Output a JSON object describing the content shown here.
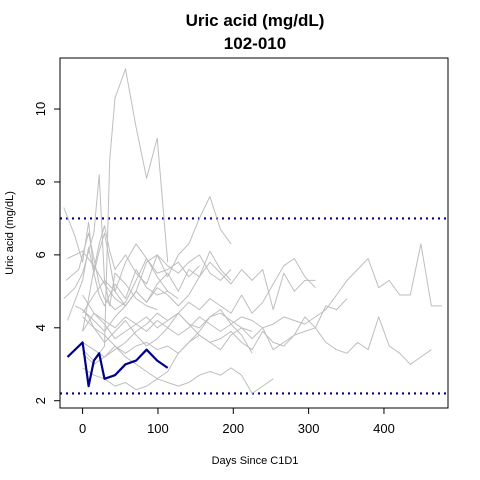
{
  "chart_data": {
    "type": "line",
    "title": "Uric acid (mg/dL)",
    "subtitle": "102-010",
    "xlabel": "Days Since C1D1",
    "ylabel": "Uric acid (mg/dL)",
    "xlim": [
      -30,
      485
    ],
    "ylim": [
      1.8,
      11.4
    ],
    "x_ticks": [
      0,
      100,
      200,
      300,
      400
    ],
    "y_ticks": [
      2,
      4,
      6,
      8,
      10
    ],
    "reference_lines": [
      {
        "y": 7.0,
        "style": "dotted",
        "color": "#00008B"
      },
      {
        "y": 2.2,
        "style": "dotted",
        "color": "#00008B"
      }
    ],
    "colors": {
      "highlight": "#00008B",
      "background_series": "#BEBEBE",
      "frame": "#000000"
    },
    "highlight_series": {
      "name": "102-010",
      "x": [
        -20,
        0,
        8,
        15,
        22,
        29,
        43,
        57,
        71,
        85,
        99,
        113
      ],
      "y": [
        3.2,
        3.6,
        2.4,
        3.1,
        3.3,
        2.6,
        2.7,
        3.0,
        3.1,
        3.4,
        3.1,
        2.9
      ]
    },
    "background_series": [
      {
        "x": [
          -25,
          -10,
          0,
          8,
          15,
          22,
          29,
          43,
          57,
          71,
          85,
          99,
          113
        ],
        "y": [
          7.3,
          6.5,
          5.8,
          6.9,
          5.5,
          4.9,
          4.6,
          5.2,
          4.8,
          5.6,
          5.1,
          4.9,
          5.0
        ]
      },
      {
        "x": [
          -20,
          0,
          15,
          29,
          43,
          57,
          71,
          85,
          99,
          113,
          127,
          141,
          155,
          169,
          183,
          197
        ],
        "y": [
          5.9,
          6.1,
          5.7,
          5.2,
          4.8,
          4.6,
          5.0,
          4.7,
          5.1,
          4.9,
          4.6,
          4.9,
          5.4,
          6.1,
          5.6,
          5.3
        ]
      },
      {
        "x": [
          -22,
          -5,
          0,
          8,
          15,
          22,
          29,
          43,
          57,
          71,
          85,
          99,
          113,
          127
        ],
        "y": [
          5.3,
          5.6,
          6.0,
          6.6,
          5.9,
          5.2,
          4.8,
          4.5,
          4.7,
          5.3,
          5.9,
          5.4,
          5.0,
          4.8
        ]
      },
      {
        "x": [
          -25,
          -10,
          0,
          8,
          15,
          22,
          29,
          36,
          43,
          57,
          71,
          85,
          99
        ],
        "y": [
          4.8,
          5.1,
          5.5,
          6.1,
          6.6,
          8.2,
          5.3,
          4.6,
          5.5,
          5.2,
          4.8,
          4.6,
          4.5
        ]
      },
      {
        "x": [
          0,
          15,
          29,
          43,
          57,
          71,
          85,
          99,
          113,
          127,
          141,
          155,
          169,
          183,
          197,
          211,
          225,
          239,
          253,
          267,
          281,
          295,
          309,
          323,
          337,
          351,
          365,
          379,
          393,
          407,
          421,
          435,
          449,
          463,
          477
        ],
        "y": [
          3.9,
          4.4,
          4.2,
          4.0,
          4.3,
          4.1,
          3.9,
          4.2,
          4.0,
          3.8,
          4.0,
          4.3,
          4.1,
          3.9,
          4.1,
          4.3,
          4.2,
          4.0,
          4.1,
          4.3,
          4.2,
          4.1,
          4.3,
          4.5,
          4.9,
          5.3,
          5.6,
          5.9,
          5.1,
          5.3,
          4.9,
          4.9,
          6.3,
          4.6,
          4.6
        ]
      },
      {
        "x": [
          0,
          15,
          29,
          43,
          57,
          71,
          85,
          99,
          113,
          127,
          141,
          155,
          169,
          183,
          197,
          211,
          225,
          239,
          253,
          267,
          281,
          295,
          309,
          323,
          337,
          351,
          365,
          379,
          393,
          407,
          421,
          435,
          449,
          463
        ],
        "y": [
          3.6,
          3.4,
          3.2,
          3.5,
          3.3,
          3.5,
          3.6,
          3.4,
          3.5,
          3.3,
          3.6,
          3.8,
          3.6,
          3.7,
          3.9,
          3.6,
          3.4,
          3.9,
          3.6,
          3.5,
          3.8,
          3.9,
          4.0,
          3.6,
          3.4,
          3.3,
          3.6,
          3.4,
          4.3,
          3.5,
          3.3,
          3.0,
          3.2,
          3.4
        ]
      },
      {
        "x": [
          0,
          15,
          29,
          43,
          57,
          71,
          85,
          99,
          113,
          127,
          141,
          155,
          169,
          183,
          197,
          211,
          225,
          239,
          253,
          267,
          281,
          295,
          309
        ],
        "y": [
          4.5,
          4.2,
          3.9,
          4.3,
          4.6,
          5.0,
          4.7,
          5.2,
          5.5,
          5.0,
          5.6,
          5.4,
          5.8,
          5.5,
          5.2,
          5.6,
          5.3,
          5.6,
          4.5,
          5.5,
          5.0,
          5.3,
          5.3
        ]
      },
      {
        "x": [
          0,
          15,
          29,
          43,
          57,
          71,
          85,
          99,
          113,
          127,
          141,
          155,
          169,
          183,
          197,
          211,
          225,
          239,
          253,
          267,
          281,
          295,
          309
        ],
        "y": [
          3.3,
          3.0,
          3.2,
          3.4,
          3.6,
          3.9,
          4.1,
          4.4,
          4.2,
          4.4,
          4.7,
          4.5,
          4.8,
          4.6,
          4.4,
          4.9,
          4.4,
          4.7,
          5.2,
          5.7,
          5.9,
          5.4,
          5.1
        ]
      },
      {
        "x": [
          0,
          15,
          29,
          43,
          57,
          71,
          85,
          99,
          113,
          127,
          141,
          155,
          169,
          183,
          197,
          211,
          225,
          239,
          253,
          267,
          281,
          295,
          309,
          323,
          337,
          351
        ],
        "y": [
          4.9,
          4.4,
          4.1,
          3.7,
          3.9,
          4.1,
          4.3,
          4.0,
          4.2,
          4.4,
          4.1,
          4.0,
          4.3,
          4.4,
          4.2,
          4.0,
          3.7,
          4.0,
          3.4,
          3.6,
          3.8,
          4.3,
          4.0,
          4.6,
          4.5,
          4.8
        ]
      },
      {
        "x": [
          0,
          8,
          15,
          22,
          29,
          36,
          43,
          57,
          71,
          85,
          99,
          113,
          127,
          141,
          155,
          169,
          183,
          197
        ],
        "y": [
          3.9,
          4.8,
          5.6,
          6.3,
          6.8,
          6.1,
          5.6,
          6.0,
          5.5,
          5.2,
          6.0,
          5.7,
          5.5,
          5.8,
          6.0,
          5.5,
          5.3,
          5.6
        ]
      },
      {
        "x": [
          -10,
          0,
          8,
          15,
          22,
          29,
          43,
          57,
          71,
          85,
          99,
          113,
          127,
          141,
          155,
          169,
          183,
          197,
          211,
          225
        ],
        "y": [
          4.6,
          4.5,
          4.3,
          4.0,
          3.8,
          3.6,
          3.9,
          4.2,
          3.8,
          3.5,
          3.7,
          4.0,
          4.4,
          4.1,
          3.8,
          3.6,
          3.4,
          3.8,
          4.0,
          3.9
        ]
      },
      {
        "x": [
          0,
          15,
          29,
          43,
          57,
          71,
          85,
          99,
          113,
          127,
          141,
          155,
          169,
          183,
          197,
          211,
          225,
          239,
          253
        ],
        "y": [
          2.9,
          2.7,
          2.6,
          2.4,
          2.5,
          2.3,
          2.4,
          2.6,
          2.5,
          2.4,
          2.5,
          2.7,
          2.8,
          2.7,
          2.9,
          2.7,
          2.2,
          2.4,
          2.6
        ]
      },
      {
        "x": [
          0,
          15,
          29,
          43,
          57,
          71,
          85,
          99,
          113,
          127,
          141,
          155,
          169,
          183,
          197,
          211,
          225
        ],
        "y": [
          4.3,
          4.0,
          3.8,
          3.5,
          3.2,
          3.0,
          2.8,
          2.6,
          2.8,
          3.3,
          3.6,
          3.9,
          4.3,
          4.5,
          4.1,
          3.8,
          3.3
        ]
      },
      {
        "x": [
          0,
          15,
          29,
          36,
          43,
          57,
          71,
          85,
          99,
          113
        ],
        "y": [
          3.4,
          3.1,
          3.5,
          8.6,
          10.3,
          11.1,
          9.5,
          8.1,
          9.2,
          5.8
        ]
      },
      {
        "x": [
          0,
          15,
          29,
          43,
          57,
          71,
          85,
          99,
          113,
          127,
          141,
          155,
          169,
          183,
          197
        ],
        "y": [
          4.4,
          4.9,
          5.3,
          5.0,
          4.6,
          5.0,
          5.8,
          6.0,
          5.4,
          6.0,
          6.3,
          7.0,
          7.6,
          6.7,
          6.3
        ]
      },
      {
        "x": [
          -20,
          0,
          8,
          15,
          22,
          29,
          43,
          57,
          71,
          85,
          99,
          113,
          127,
          141,
          155
        ],
        "y": [
          4.2,
          5.3,
          6.2,
          5.5,
          6.1,
          6.6,
          5.0,
          5.8,
          6.3,
          5.9,
          5.5,
          5.6,
          5.8,
          5.4,
          5.7
        ]
      }
    ]
  }
}
